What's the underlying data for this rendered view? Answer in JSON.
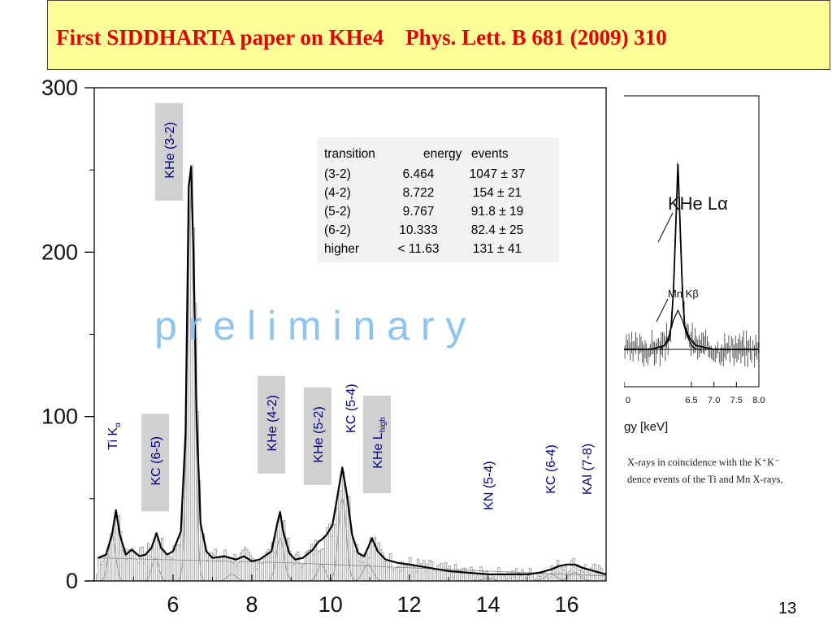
{
  "slide": {
    "title": "First SIDDHARTA paper on KHe4    Phys. Lett. B 681 (2009) 310",
    "page_number": "13",
    "watermark": "p r e l i m i n a r y",
    "colors": {
      "title_bg": "#ffff99",
      "title_text": "#e00000",
      "watermark": "#8ec4ee",
      "label_text": "#000080",
      "label_bg": "#d0d0d0"
    }
  },
  "results_table": {
    "header": [
      "transition",
      "energy",
      "events"
    ],
    "rows": [
      [
        "(3-2)",
        "6.464",
        "1047 ± 37"
      ],
      [
        "(4-2)",
        "8.722",
        "154 ± 21"
      ],
      [
        "(5-2)",
        "9.767",
        "91.8 ± 19"
      ],
      [
        "(6-2)",
        "10.333",
        "82.4 ± 25"
      ],
      [
        "higher",
        "< 11.63",
        "131 ± 41"
      ]
    ]
  },
  "chart_data": [
    {
      "type": "line",
      "xlim": [
        4.0,
        17.0
      ],
      "ylim": [
        0,
        300
      ],
      "x_ticks": [
        6,
        8,
        10,
        12,
        14,
        16
      ],
      "y_ticks": [
        0,
        100,
        200,
        300
      ],
      "xlabel": "",
      "ylabel": "",
      "grid": false,
      "series": [
        {
          "x": [
            4.1,
            4.3,
            4.45,
            4.55,
            4.65,
            4.8,
            4.95,
            5.05,
            5.15,
            5.3,
            5.45,
            5.58,
            5.7,
            5.85,
            6.0,
            6.2,
            6.32,
            6.4,
            6.46,
            6.52,
            6.6,
            6.7,
            6.85,
            7.0,
            7.3,
            7.6,
            7.8,
            8.0,
            8.2,
            8.5,
            8.65,
            8.72,
            8.8,
            8.95,
            9.1,
            9.3,
            9.55,
            9.7,
            9.77,
            9.9,
            10.05,
            10.2,
            10.3,
            10.42,
            10.55,
            10.7,
            10.85,
            10.95,
            11.05,
            11.2,
            11.4,
            11.7,
            12.0,
            12.5,
            13.0,
            13.5,
            14.0,
            14.5,
            15.0,
            15.3,
            15.6,
            15.8,
            16.0,
            16.2,
            16.4,
            16.7,
            17.0
          ],
          "y": [
            14,
            16,
            28,
            43,
            28,
            16,
            19,
            17,
            15,
            16,
            20,
            29,
            20,
            16,
            18,
            30,
            90,
            240,
            252,
            200,
            100,
            35,
            18,
            14,
            15,
            13,
            15,
            12,
            13,
            18,
            35,
            42,
            30,
            17,
            13,
            14,
            19,
            24,
            25,
            28,
            34,
            55,
            69,
            52,
            28,
            17,
            15,
            20,
            26,
            18,
            13,
            11,
            10,
            8,
            6,
            5,
            4,
            4,
            4,
            5,
            7,
            9,
            10,
            10,
            8,
            6,
            4
          ]
        }
      ]
    },
    {
      "type": "line",
      "xlim": [
        5.0,
        8.0
      ],
      "x_ticks": [
        "0",
        "6.5",
        "7.0",
        "7.5",
        "8.0"
      ],
      "xlabel": "gy [keV]",
      "annotations": [
        "KHe Lα",
        "Mn Kβ"
      ],
      "series": [
        {
          "x": [
            5.0,
            5.6,
            5.9,
            6.0,
            6.05,
            6.1,
            6.15,
            6.2,
            6.25,
            6.3,
            6.35,
            6.45,
            6.6,
            7.0,
            8.0
          ],
          "y": [
            0.0,
            0.0,
            0.02,
            0.05,
            0.12,
            0.3,
            0.62,
            0.95,
            0.62,
            0.3,
            0.12,
            0.06,
            0.02,
            0.0,
            0.0
          ]
        },
        {
          "x": [
            5.8,
            5.9,
            6.0,
            6.1,
            6.2,
            6.3,
            6.4,
            6.5,
            6.6,
            6.7
          ],
          "y": [
            0.0,
            0.02,
            0.07,
            0.15,
            0.2,
            0.15,
            0.07,
            0.02,
            0.0,
            0.0
          ]
        }
      ]
    }
  ],
  "peak_labels": [
    {
      "id": "ti-ka",
      "text": "Ti K",
      "sub": "α",
      "x": 4.45,
      "y": 88
    },
    {
      "id": "kc-65",
      "text": "KC (6-5)",
      "sub": "",
      "x": 5.55,
      "y": 73,
      "shaded": true
    },
    {
      "id": "khe-32",
      "text": "KHe (3-2)",
      "sub": "",
      "x": 5.9,
      "y": 262,
      "shaded": true
    },
    {
      "id": "khe-42",
      "text": "KHe (4-2)",
      "sub": "",
      "x": 8.5,
      "y": 96,
      "shaded": true
    },
    {
      "id": "khe-52",
      "text": "KHe (5-2)",
      "sub": "",
      "x": 9.67,
      "y": 89,
      "shaded": true
    },
    {
      "id": "kc-54",
      "text": "KC (5-4)",
      "sub": "",
      "x": 10.5,
      "y": 105
    },
    {
      "id": "khe-lhigh",
      "text": "KHe L",
      "sub": "high",
      "x": 11.18,
      "y": 84,
      "shaded": true
    },
    {
      "id": "kn-54",
      "text": "KN (5-4)",
      "sub": "",
      "x": 14.0,
      "y": 58
    },
    {
      "id": "kc-64",
      "text": "KC (6-4)",
      "sub": "",
      "x": 15.58,
      "y": 68
    },
    {
      "id": "kal-78",
      "text": "KAl (7-8)",
      "sub": "",
      "x": 16.5,
      "y": 68
    }
  ],
  "inset_caption": [
    "X-rays in coincidence with the K⁺K⁻",
    "dence events of the Ti and Mn X-rays,"
  ]
}
